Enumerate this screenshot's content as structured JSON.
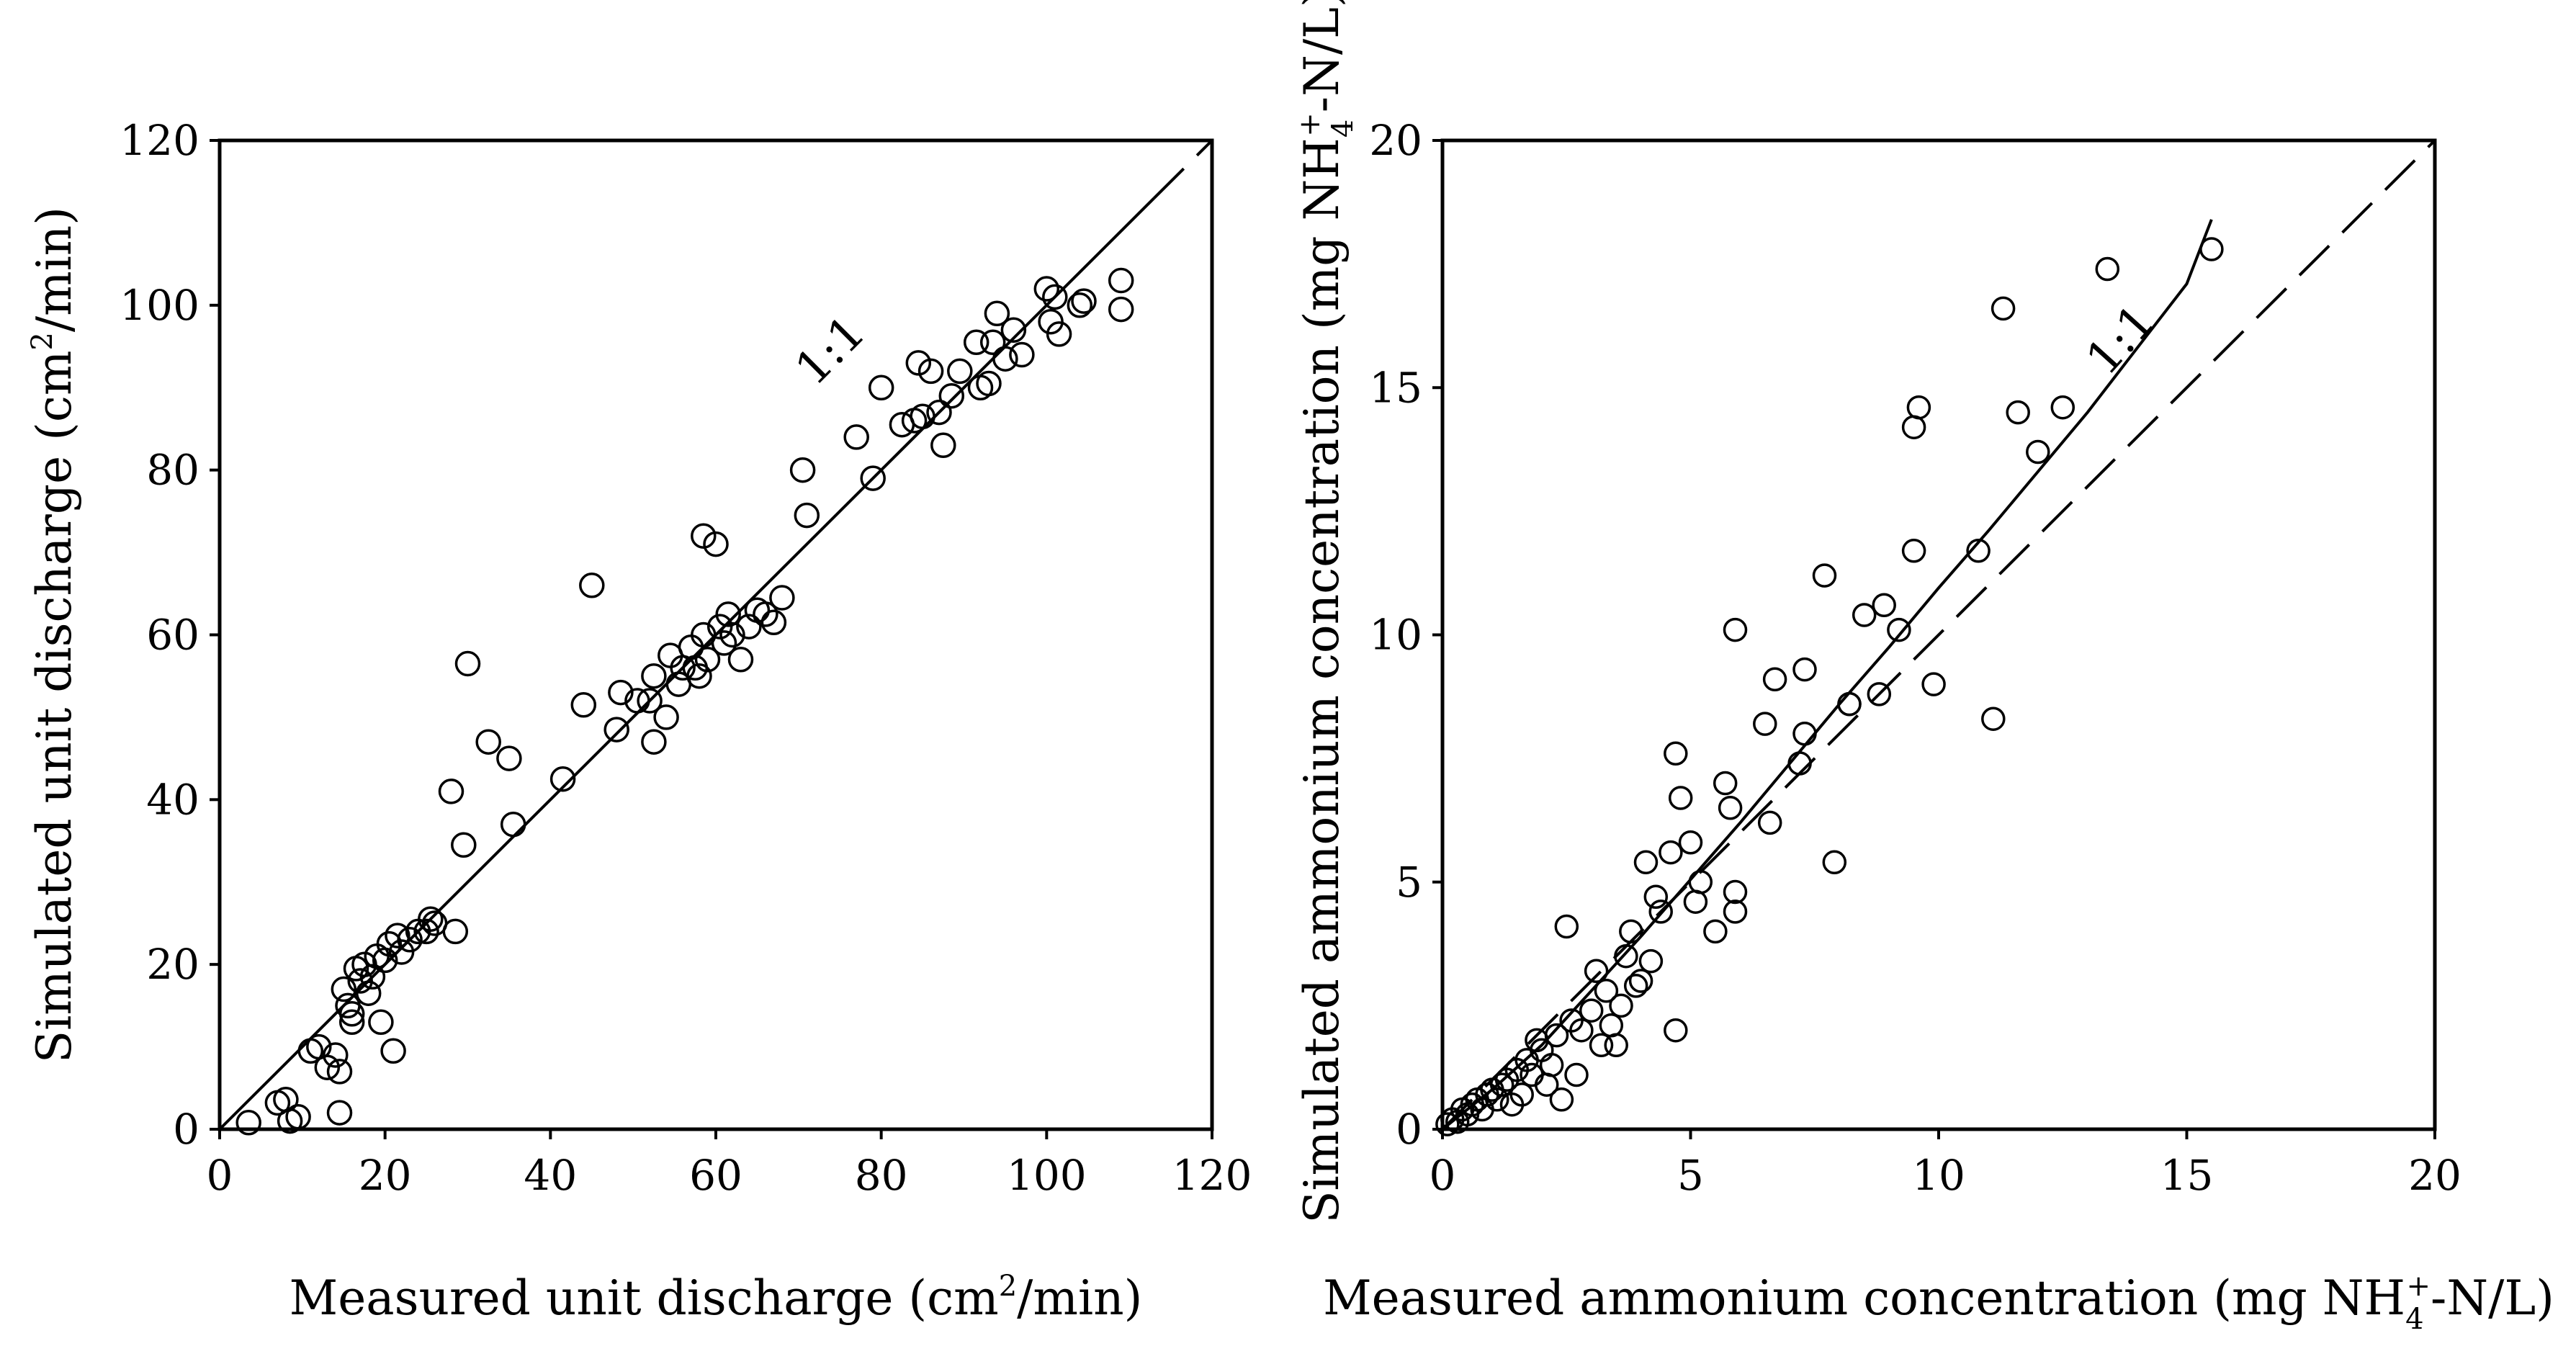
{
  "chart_data": [
    {
      "type": "scatter",
      "id": "left",
      "xlabel": {
        "pre": "Measured unit discharge (cm",
        "sup": "2",
        "post": "/min)"
      },
      "ylabel": {
        "pre": "Simulated unit discharge (cm",
        "sup": "2",
        "post": "/min)"
      },
      "xlim": [
        0,
        120
      ],
      "ylim": [
        0,
        120
      ],
      "xticks": [
        "0",
        "20",
        "40",
        "60",
        "80",
        "100",
        "120"
      ],
      "yticks": [
        "0",
        "20",
        "40",
        "60",
        "80",
        "100",
        "120"
      ],
      "annotation": {
        "text": "1:1",
        "x": 72,
        "y": 90,
        "rotate": -45
      },
      "lines": [
        {
          "name": "fit",
          "style": "solid",
          "points": [
            [
              0,
              0
            ],
            [
              113,
              113
            ]
          ]
        },
        {
          "name": "1:1",
          "style": "dashed",
          "points": [
            [
              113,
              113
            ],
            [
              120,
              120
            ]
          ]
        }
      ],
      "series": [
        {
          "name": "observations",
          "points": [
            [
              3.5,
              0.8
            ],
            [
              7,
              3.2
            ],
            [
              8,
              3.6
            ],
            [
              8.5,
              1.0
            ],
            [
              9.5,
              1.5
            ],
            [
              11,
              9.5
            ],
            [
              12,
              10
            ],
            [
              13,
              7.5
            ],
            [
              14,
              9
            ],
            [
              14.5,
              7
            ],
            [
              14.5,
              2
            ],
            [
              15,
              17
            ],
            [
              15.5,
              15
            ],
            [
              16,
              13
            ],
            [
              16,
              14
            ],
            [
              16.5,
              19.5
            ],
            [
              17,
              18
            ],
            [
              17.5,
              20
            ],
            [
              18,
              16.5
            ],
            [
              18.5,
              18.5
            ],
            [
              19,
              21
            ],
            [
              19.5,
              13
            ],
            [
              20,
              20.5
            ],
            [
              20.5,
              22.5
            ],
            [
              21,
              9.5
            ],
            [
              21.5,
              23.5
            ],
            [
              22,
              21.5
            ],
            [
              23,
              23
            ],
            [
              24,
              24
            ],
            [
              25,
              24
            ],
            [
              25.5,
              25.5
            ],
            [
              26,
              25
            ],
            [
              28,
              41
            ],
            [
              28.5,
              24
            ],
            [
              29.5,
              34.5
            ],
            [
              30,
              56.5
            ],
            [
              32.5,
              47
            ],
            [
              35,
              45
            ],
            [
              35.5,
              37
            ],
            [
              41.5,
              42.5
            ],
            [
              44,
              51.5
            ],
            [
              45,
              66
            ],
            [
              48,
              48.5
            ],
            [
              48.5,
              53
            ],
            [
              50.5,
              52
            ],
            [
              52,
              52
            ],
            [
              52.5,
              55
            ],
            [
              52.5,
              47
            ],
            [
              54,
              50
            ],
            [
              54.5,
              57.5
            ],
            [
              55.5,
              54
            ],
            [
              56,
              56
            ],
            [
              57,
              58.5
            ],
            [
              57.5,
              56
            ],
            [
              58,
              55
            ],
            [
              58.5,
              60
            ],
            [
              58.5,
              72
            ],
            [
              59,
              57
            ],
            [
              60,
              71
            ],
            [
              60.5,
              61
            ],
            [
              61,
              59
            ],
            [
              61.5,
              62.5
            ],
            [
              62,
              60
            ],
            [
              63,
              57
            ],
            [
              64,
              61
            ],
            [
              65,
              63
            ],
            [
              66,
              62.5
            ],
            [
              67,
              61.5
            ],
            [
              68,
              64.5
            ],
            [
              70.5,
              80
            ],
            [
              71,
              74.5
            ],
            [
              77,
              84
            ],
            [
              79,
              79
            ],
            [
              80,
              90
            ],
            [
              82.5,
              85.5
            ],
            [
              84,
              86
            ],
            [
              84.5,
              93
            ],
            [
              85,
              86.5
            ],
            [
              86,
              92
            ],
            [
              87,
              87
            ],
            [
              87.5,
              83
            ],
            [
              88.5,
              89
            ],
            [
              89.5,
              92
            ],
            [
              91.5,
              95.5
            ],
            [
              92,
              90
            ],
            [
              93,
              90.5
            ],
            [
              93.5,
              95.5
            ],
            [
              94,
              99
            ],
            [
              95,
              93.5
            ],
            [
              96,
              97
            ],
            [
              97,
              94
            ],
            [
              100,
              102
            ],
            [
              100.5,
              98
            ],
            [
              101,
              101
            ],
            [
              101.5,
              96.5
            ],
            [
              104,
              100
            ],
            [
              104.5,
              100.5
            ],
            [
              109,
              103
            ],
            [
              109,
              99.5
            ]
          ]
        }
      ]
    },
    {
      "type": "scatter",
      "id": "right",
      "xlabel": {
        "pre": "Measured  ammonium concentration (mg NH",
        "sub": "4",
        "sup": "+",
        "post": "-N/L)"
      },
      "ylabel": {
        "pre": "Simulated ammonium concentration (mg NH",
        "sub": "4",
        "sup": "+",
        "post": "-N/L)"
      },
      "xlim": [
        0,
        20
      ],
      "ylim": [
        0,
        20
      ],
      "xticks": [
        "0",
        "5",
        "10",
        "15",
        "20"
      ],
      "yticks": [
        "0",
        "5",
        "10",
        "15",
        "20"
      ],
      "annotation": {
        "text": "1:1",
        "x": 13.4,
        "y": 15.2,
        "rotate": -48
      },
      "lines": [
        {
          "name": "fit",
          "style": "solid",
          "points": [
            [
              0,
              0
            ],
            [
              1,
              0.8
            ],
            [
              2,
              1.7
            ],
            [
              3,
              2.8
            ],
            [
              4,
              3.9
            ],
            [
              5,
              5.05
            ],
            [
              6,
              6.2
            ],
            [
              7,
              7.4
            ],
            [
              8,
              8.6
            ],
            [
              9,
              9.75
            ],
            [
              10,
              10.95
            ],
            [
              11,
              12.1
            ],
            [
              12,
              13.3
            ],
            [
              13,
              14.5
            ],
            [
              14,
              15.8
            ],
            [
              15,
              17.1
            ],
            [
              15.5,
              18.4
            ]
          ]
        },
        {
          "name": "1:1",
          "style": "dashed",
          "points": [
            [
              0,
              0
            ],
            [
              20,
              20
            ]
          ]
        }
      ],
      "series": [
        {
          "name": "observations",
          "points": [
            [
              0.1,
              0.1
            ],
            [
              0.2,
              0.2
            ],
            [
              0.3,
              0.15
            ],
            [
              0.4,
              0.4
            ],
            [
              0.5,
              0.3
            ],
            [
              0.6,
              0.5
            ],
            [
              0.7,
              0.6
            ],
            [
              0.8,
              0.4
            ],
            [
              0.9,
              0.7
            ],
            [
              1.0,
              0.8
            ],
            [
              1.1,
              0.6
            ],
            [
              1.2,
              0.9
            ],
            [
              1.3,
              1.0
            ],
            [
              1.4,
              0.5
            ],
            [
              1.5,
              1.2
            ],
            [
              1.6,
              0.7
            ],
            [
              1.7,
              1.4
            ],
            [
              1.8,
              1.1
            ],
            [
              1.9,
              1.8
            ],
            [
              2.0,
              1.6
            ],
            [
              2.1,
              0.9
            ],
            [
              2.2,
              1.3
            ],
            [
              2.3,
              1.9
            ],
            [
              2.4,
              0.6
            ],
            [
              2.5,
              4.1
            ],
            [
              2.6,
              2.2
            ],
            [
              2.7,
              1.1
            ],
            [
              2.8,
              2.0
            ],
            [
              3.0,
              2.4
            ],
            [
              3.1,
              3.2
            ],
            [
              3.2,
              1.7
            ],
            [
              3.3,
              2.8
            ],
            [
              3.4,
              2.1
            ],
            [
              3.5,
              1.7
            ],
            [
              3.6,
              2.5
            ],
            [
              3.7,
              3.5
            ],
            [
              3.8,
              4.0
            ],
            [
              3.9,
              2.9
            ],
            [
              4.0,
              3.0
            ],
            [
              4.1,
              5.4
            ],
            [
              4.2,
              3.4
            ],
            [
              4.3,
              4.7
            ],
            [
              4.4,
              4.4
            ],
            [
              4.6,
              5.6
            ],
            [
              4.7,
              7.6
            ],
            [
              4.7,
              2.0
            ],
            [
              4.8,
              6.7
            ],
            [
              5.0,
              5.8
            ],
            [
              5.1,
              4.6
            ],
            [
              5.2,
              5.0
            ],
            [
              5.5,
              4.0
            ],
            [
              5.7,
              7.0
            ],
            [
              5.8,
              6.5
            ],
            [
              5.9,
              4.8
            ],
            [
              5.9,
              4.4
            ],
            [
              5.9,
              10.1
            ],
            [
              6.5,
              8.2
            ],
            [
              6.6,
              6.2
            ],
            [
              6.7,
              9.1
            ],
            [
              7.2,
              7.4
            ],
            [
              7.3,
              9.3
            ],
            [
              7.3,
              8.0
            ],
            [
              7.7,
              11.2
            ],
            [
              7.9,
              5.4
            ],
            [
              8.2,
              8.6
            ],
            [
              8.2,
              8.6
            ],
            [
              8.5,
              10.4
            ],
            [
              8.8,
              8.8
            ],
            [
              8.9,
              10.6
            ],
            [
              9.2,
              10.1
            ],
            [
              9.5,
              11.7
            ],
            [
              9.5,
              14.2
            ],
            [
              9.6,
              14.6
            ],
            [
              9.9,
              9.0
            ],
            [
              10.8,
              11.7
            ],
            [
              11.1,
              8.3
            ],
            [
              11.3,
              16.6
            ],
            [
              11.6,
              14.5
            ],
            [
              12.0,
              13.7
            ],
            [
              12.5,
              14.6
            ],
            [
              13.4,
              17.4
            ],
            [
              15.5,
              17.8
            ]
          ]
        }
      ]
    }
  ]
}
